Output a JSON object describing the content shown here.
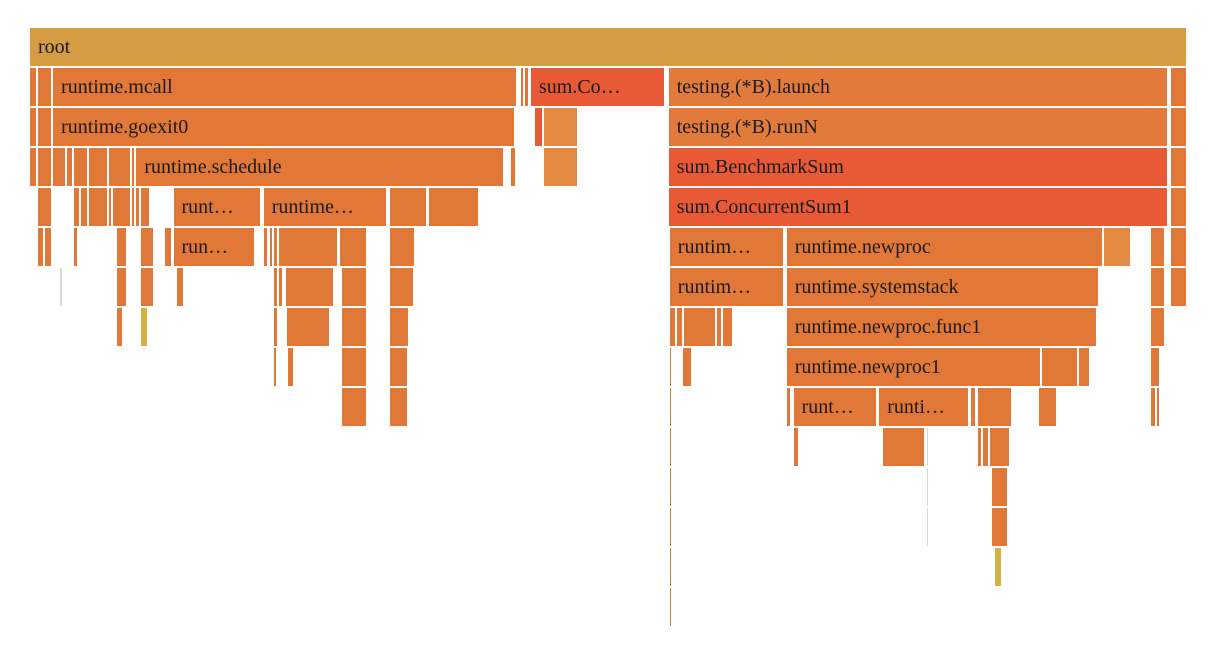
{
  "chart_data": {
    "type": "flamegraph",
    "x_unit": "fraction of root",
    "frames": [
      {
        "label": "root",
        "depth": 0,
        "start": 0.0,
        "width": 1.0,
        "color": "#d69c44"
      },
      {
        "label": "",
        "depth": 1,
        "start": 0.0,
        "width": 0.006,
        "color": "#e07838"
      },
      {
        "label": "",
        "depth": 1,
        "start": 0.007,
        "width": 0.012,
        "color": "#e07838"
      },
      {
        "label": "runtime.mcall",
        "depth": 1,
        "start": 0.02,
        "width": 0.401,
        "color": "#e27838"
      },
      {
        "label": "",
        "depth": 1,
        "start": 0.424,
        "width": 0.003,
        "color": "#e07838"
      },
      {
        "label": "",
        "depth": 1,
        "start": 0.428,
        "width": 0.003,
        "color": "#e07838"
      },
      {
        "label": "sum.Co…",
        "depth": 1,
        "start": 0.433,
        "width": 0.116,
        "color": "#e85a36"
      },
      {
        "label": "testing.(*B).launch",
        "depth": 1,
        "start": 0.552,
        "width": 0.432,
        "color": "#e27a3c"
      },
      {
        "label": "",
        "depth": 1,
        "start": 0.986,
        "width": 0.014,
        "color": "#e07838"
      },
      {
        "label": "",
        "depth": 2,
        "start": 0.0,
        "width": 0.006,
        "color": "#e07838"
      },
      {
        "label": "",
        "depth": 2,
        "start": 0.007,
        "width": 0.012,
        "color": "#e07838"
      },
      {
        "label": "runtime.goexit0",
        "depth": 2,
        "start": 0.02,
        "width": 0.399,
        "color": "#e27838"
      },
      {
        "label": "",
        "depth": 2,
        "start": 0.436,
        "width": 0.007,
        "color": "#e85a36"
      },
      {
        "label": "",
        "depth": 2,
        "start": 0.444,
        "width": 0.03,
        "color": "#e28a42"
      },
      {
        "label": "testing.(*B).runN",
        "depth": 2,
        "start": 0.552,
        "width": 0.432,
        "color": "#e27a3c"
      },
      {
        "label": "",
        "depth": 2,
        "start": 0.986,
        "width": 0.014,
        "color": "#e07838"
      },
      {
        "label": "",
        "depth": 3,
        "start": 0.0,
        "width": 0.006,
        "color": "#e07838"
      },
      {
        "label": "",
        "depth": 3,
        "start": 0.007,
        "width": 0.012,
        "color": "#e07838"
      },
      {
        "label": "",
        "depth": 3,
        "start": 0.02,
        "width": 0.011,
        "color": "#e07838"
      },
      {
        "label": "",
        "depth": 3,
        "start": 0.032,
        "width": 0.005,
        "color": "#e07838"
      },
      {
        "label": "",
        "depth": 3,
        "start": 0.038,
        "width": 0.012,
        "color": "#e07838"
      },
      {
        "label": "",
        "depth": 3,
        "start": 0.051,
        "width": 0.016,
        "color": "#e07838"
      },
      {
        "label": "",
        "depth": 3,
        "start": 0.068,
        "width": 0.019,
        "color": "#e07838"
      },
      {
        "label": "",
        "depth": 3,
        "start": 0.088,
        "width": 0.003,
        "color": "#e07838"
      },
      {
        "label": "runtime.schedule",
        "depth": 3,
        "start": 0.092,
        "width": 0.318,
        "color": "#e27838"
      },
      {
        "label": "",
        "depth": 3,
        "start": 0.416,
        "width": 0.004,
        "color": "#e07838"
      },
      {
        "label": "",
        "depth": 3,
        "start": 0.444,
        "width": 0.03,
        "color": "#e28a42"
      },
      {
        "label": "sum.BenchmarkSum",
        "depth": 3,
        "start": 0.552,
        "width": 0.432,
        "color": "#e85a36"
      },
      {
        "label": "",
        "depth": 3,
        "start": 0.986,
        "width": 0.014,
        "color": "#e07838"
      },
      {
        "label": "",
        "depth": 4,
        "start": 0.007,
        "width": 0.012,
        "color": "#e07838"
      },
      {
        "label": "",
        "depth": 4,
        "start": 0.038,
        "width": 0.005,
        "color": "#e07838"
      },
      {
        "label": "",
        "depth": 4,
        "start": 0.044,
        "width": 0.006,
        "color": "#e07838"
      },
      {
        "label": "",
        "depth": 4,
        "start": 0.051,
        "width": 0.016,
        "color": "#e07838"
      },
      {
        "label": "",
        "depth": 4,
        "start": 0.068,
        "width": 0.003,
        "color": "#e07838"
      },
      {
        "label": "",
        "depth": 4,
        "start": 0.072,
        "width": 0.015,
        "color": "#e07838"
      },
      {
        "label": "",
        "depth": 4,
        "start": 0.088,
        "width": 0.003,
        "color": "#e07838"
      },
      {
        "label": "",
        "depth": 4,
        "start": 0.092,
        "width": 0.003,
        "color": "#e07838"
      },
      {
        "label": "",
        "depth": 4,
        "start": 0.096,
        "width": 0.008,
        "color": "#e07838"
      },
      {
        "label": "runt…",
        "depth": 4,
        "start": 0.124,
        "width": 0.076,
        "color": "#e27838"
      },
      {
        "label": "runtime…",
        "depth": 4,
        "start": 0.202,
        "width": 0.107,
        "color": "#e27838"
      },
      {
        "label": "",
        "depth": 4,
        "start": 0.311,
        "width": 0.032,
        "color": "#e07838"
      },
      {
        "label": "",
        "depth": 4,
        "start": 0.345,
        "width": 0.043,
        "color": "#e07838"
      },
      {
        "label": "sum.ConcurrentSum1",
        "depth": 4,
        "start": 0.552,
        "width": 0.432,
        "color": "#e85a36"
      },
      {
        "label": "",
        "depth": 4,
        "start": 0.986,
        "width": 0.014,
        "color": "#e07838"
      },
      {
        "label": "",
        "depth": 5,
        "start": 0.007,
        "width": 0.005,
        "color": "#e07838"
      },
      {
        "label": "",
        "depth": 5,
        "start": 0.013,
        "width": 0.006,
        "color": "#e07838"
      },
      {
        "label": "",
        "depth": 5,
        "start": 0.038,
        "width": 0.003,
        "color": "#e07838"
      },
      {
        "label": "",
        "depth": 5,
        "start": 0.075,
        "width": 0.009,
        "color": "#e07838"
      },
      {
        "label": "",
        "depth": 5,
        "start": 0.096,
        "width": 0.011,
        "color": "#e07838"
      },
      {
        "label": "",
        "depth": 5,
        "start": 0.117,
        "width": 0.006,
        "color": "#e07838"
      },
      {
        "label": "run…",
        "depth": 5,
        "start": 0.124,
        "width": 0.07,
        "color": "#e27838"
      },
      {
        "label": "",
        "depth": 5,
        "start": 0.202,
        "width": 0.004,
        "color": "#e07838"
      },
      {
        "label": "",
        "depth": 5,
        "start": 0.207,
        "width": 0.003,
        "color": "#e07838"
      },
      {
        "label": "",
        "depth": 5,
        "start": 0.211,
        "width": 0.003,
        "color": "#e07838"
      },
      {
        "label": "",
        "depth": 5,
        "start": 0.215,
        "width": 0.051,
        "color": "#e07838"
      },
      {
        "label": "",
        "depth": 5,
        "start": 0.268,
        "width": 0.023,
        "color": "#e07838"
      },
      {
        "label": "",
        "depth": 5,
        "start": 0.311,
        "width": 0.022,
        "color": "#e07838"
      },
      {
        "label": "runtim…",
        "depth": 5,
        "start": 0.553,
        "width": 0.099,
        "color": "#e27838"
      },
      {
        "label": "runtime.newproc",
        "depth": 5,
        "start": 0.654,
        "width": 0.273,
        "color": "#e27838"
      },
      {
        "label": "",
        "depth": 5,
        "start": 0.928,
        "width": 0.024,
        "color": "#e28a42"
      },
      {
        "label": "",
        "depth": 5,
        "start": 0.969,
        "width": 0.012,
        "color": "#e07838"
      },
      {
        "label": "",
        "depth": 5,
        "start": 0.986,
        "width": 0.014,
        "color": "#e07838"
      },
      {
        "label": "",
        "depth": 6,
        "start": 0.026,
        "width": 0.002,
        "color": "#dcd8d6"
      },
      {
        "label": "",
        "depth": 6,
        "start": 0.075,
        "width": 0.009,
        "color": "#e07838"
      },
      {
        "label": "",
        "depth": 6,
        "start": 0.096,
        "width": 0.011,
        "color": "#e07838"
      },
      {
        "label": "",
        "depth": 6,
        "start": 0.127,
        "width": 0.006,
        "color": "#e07838"
      },
      {
        "label": "",
        "depth": 6,
        "start": 0.211,
        "width": 0.003,
        "color": "#e07838"
      },
      {
        "label": "",
        "depth": 6,
        "start": 0.215,
        "width": 0.004,
        "color": "#e07838"
      },
      {
        "label": "",
        "depth": 6,
        "start": 0.221,
        "width": 0.042,
        "color": "#e07838"
      },
      {
        "label": "",
        "depth": 6,
        "start": 0.27,
        "width": 0.021,
        "color": "#e07838"
      },
      {
        "label": "",
        "depth": 6,
        "start": 0.311,
        "width": 0.021,
        "color": "#e07838"
      },
      {
        "label": "runtim…",
        "depth": 6,
        "start": 0.553,
        "width": 0.099,
        "color": "#e27838"
      },
      {
        "label": "runtime.systemstack",
        "depth": 6,
        "start": 0.654,
        "width": 0.27,
        "color": "#e27838"
      },
      {
        "label": "",
        "depth": 6,
        "start": 0.969,
        "width": 0.012,
        "color": "#e07838"
      },
      {
        "label": "",
        "depth": 6,
        "start": 0.986,
        "width": 0.014,
        "color": "#e07838"
      },
      {
        "label": "",
        "depth": 7,
        "start": 0.075,
        "width": 0.005,
        "color": "#e07838"
      },
      {
        "label": "",
        "depth": 7,
        "start": 0.096,
        "width": 0.006,
        "color": "#d6b040"
      },
      {
        "label": "",
        "depth": 7,
        "start": 0.211,
        "width": 0.003,
        "color": "#e07838"
      },
      {
        "label": "",
        "depth": 7,
        "start": 0.222,
        "width": 0.037,
        "color": "#e07838"
      },
      {
        "label": "",
        "depth": 7,
        "start": 0.27,
        "width": 0.021,
        "color": "#e07838"
      },
      {
        "label": "",
        "depth": 7,
        "start": 0.311,
        "width": 0.017,
        "color": "#e07838"
      },
      {
        "label": "",
        "depth": 7,
        "start": 0.553,
        "width": 0.005,
        "color": "#e07838"
      },
      {
        "label": "",
        "depth": 7,
        "start": 0.559,
        "width": 0.005,
        "color": "#e07838"
      },
      {
        "label": "",
        "depth": 7,
        "start": 0.565,
        "width": 0.028,
        "color": "#e07838"
      },
      {
        "label": "",
        "depth": 7,
        "start": 0.594,
        "width": 0.004,
        "color": "#e07838"
      },
      {
        "label": "",
        "depth": 7,
        "start": 0.599,
        "width": 0.009,
        "color": "#e07838"
      },
      {
        "label": "runtime.newproc.func1",
        "depth": 7,
        "start": 0.654,
        "width": 0.268,
        "color": "#e27838"
      },
      {
        "label": "",
        "depth": 7,
        "start": 0.969,
        "width": 0.012,
        "color": "#e07838"
      },
      {
        "label": "",
        "depth": 8,
        "start": 0.211,
        "width": 0.002,
        "color": "#e07838"
      },
      {
        "label": "",
        "depth": 8,
        "start": 0.223,
        "width": 0.005,
        "color": "#e07838"
      },
      {
        "label": "",
        "depth": 8,
        "start": 0.27,
        "width": 0.021,
        "color": "#e07838"
      },
      {
        "label": "",
        "depth": 8,
        "start": 0.311,
        "width": 0.016,
        "color": "#e07838"
      },
      {
        "label": "",
        "depth": 8,
        "start": 0.553,
        "width": 0.002,
        "color": "#e07838"
      },
      {
        "label": "",
        "depth": 8,
        "start": 0.564,
        "width": 0.008,
        "color": "#e07838"
      },
      {
        "label": "runtime.newproc1",
        "depth": 8,
        "start": 0.654,
        "width": 0.22,
        "color": "#e27838"
      },
      {
        "label": "",
        "depth": 8,
        "start": 0.875,
        "width": 0.031,
        "color": "#e07838"
      },
      {
        "label": "",
        "depth": 8,
        "start": 0.907,
        "width": 0.009,
        "color": "#e07838"
      },
      {
        "label": "",
        "depth": 8,
        "start": 0.969,
        "width": 0.008,
        "color": "#e07838"
      },
      {
        "label": "",
        "depth": 9,
        "start": 0.27,
        "width": 0.021,
        "color": "#e07838"
      },
      {
        "label": "",
        "depth": 9,
        "start": 0.311,
        "width": 0.016,
        "color": "#e07838"
      },
      {
        "label": "",
        "depth": 9,
        "start": 0.553,
        "width": 0.002,
        "color": "#e07838"
      },
      {
        "label": "",
        "depth": 9,
        "start": 0.654,
        "width": 0.004,
        "color": "#e07838"
      },
      {
        "label": "runt…",
        "depth": 9,
        "start": 0.66,
        "width": 0.072,
        "color": "#e27838"
      },
      {
        "label": "runti…",
        "depth": 9,
        "start": 0.734,
        "width": 0.078,
        "color": "#e27838"
      },
      {
        "label": "",
        "depth": 9,
        "start": 0.813,
        "width": 0.005,
        "color": "#e07838"
      },
      {
        "label": "",
        "depth": 9,
        "start": 0.819,
        "width": 0.03,
        "color": "#e07838"
      },
      {
        "label": "",
        "depth": 9,
        "start": 0.872,
        "width": 0.016,
        "color": "#e07838"
      },
      {
        "label": "",
        "depth": 9,
        "start": 0.969,
        "width": 0.004,
        "color": "#e07838"
      },
      {
        "label": "",
        "depth": 9,
        "start": 0.974,
        "width": 0.003,
        "color": "#e07838"
      },
      {
        "label": "",
        "depth": 10,
        "start": 0.553,
        "width": 0.002,
        "color": "#e07838"
      },
      {
        "label": "",
        "depth": 10,
        "start": 0.66,
        "width": 0.005,
        "color": "#e07838"
      },
      {
        "label": "",
        "depth": 10,
        "start": 0.737,
        "width": 0.037,
        "color": "#e07838"
      },
      {
        "label": "",
        "depth": 10,
        "start": 0.775,
        "width": 0.002,
        "color": "#dcd8d6"
      },
      {
        "label": "",
        "depth": 10,
        "start": 0.819,
        "width": 0.004,
        "color": "#e07838"
      },
      {
        "label": "",
        "depth": 10,
        "start": 0.824,
        "width": 0.005,
        "color": "#e07838"
      },
      {
        "label": "",
        "depth": 10,
        "start": 0.83,
        "width": 0.017,
        "color": "#e07838"
      },
      {
        "label": "",
        "depth": 11,
        "start": 0.553,
        "width": 0.002,
        "color": "#e07838"
      },
      {
        "label": "",
        "depth": 11,
        "start": 0.775,
        "width": 0.002,
        "color": "#dcd8d6"
      },
      {
        "label": "",
        "depth": 11,
        "start": 0.831,
        "width": 0.014,
        "color": "#e07838"
      },
      {
        "label": "",
        "depth": 12,
        "start": 0.553,
        "width": 0.002,
        "color": "#e07838"
      },
      {
        "label": "",
        "depth": 12,
        "start": 0.775,
        "width": 0.002,
        "color": "#dcd8d6"
      },
      {
        "label": "",
        "depth": 12,
        "start": 0.831,
        "width": 0.014,
        "color": "#e07838"
      },
      {
        "label": "",
        "depth": 13,
        "start": 0.553,
        "width": 0.002,
        "color": "#e07838"
      },
      {
        "label": "",
        "depth": 13,
        "start": 0.834,
        "width": 0.006,
        "color": "#d6b040"
      },
      {
        "label": "",
        "depth": 14,
        "start": 0.553,
        "width": 0.002,
        "color": "#e07838"
      }
    ]
  }
}
